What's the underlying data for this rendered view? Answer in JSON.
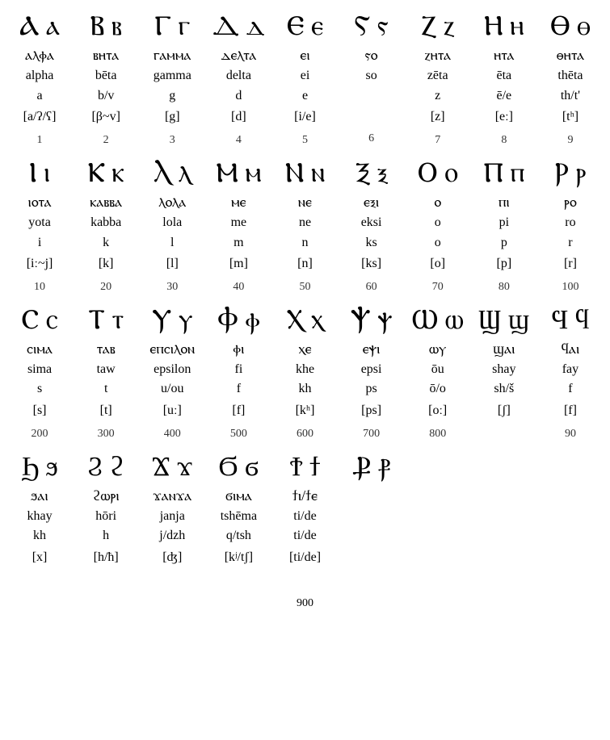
{
  "layout": {
    "columns": 9,
    "rows": 4,
    "background_color": "#ffffff",
    "text_color": "#000000",
    "glyph_fontsize": 34,
    "native_fontsize": 18,
    "label_fontsize": 16,
    "num_fontsize": 14
  },
  "footer": {
    "value": "900"
  },
  "letters": [
    {
      "glyph": "Ⲁ ⲁ",
      "native": "ⲁⲗⲫⲁ",
      "translit": "alpha",
      "sound": "a",
      "ipa": "[a/ʔ/ʕ]",
      "num": "1"
    },
    {
      "glyph": "Ⲃ ⲃ",
      "native": "ⲃⲏⲧⲁ",
      "translit": "bēta",
      "sound": "b/v",
      "ipa": "[β~v]",
      "num": "2"
    },
    {
      "glyph": "Ⲅ ⲅ",
      "native": "ⲅⲁⲙⲙⲁ",
      "translit": "gamma",
      "sound": "g",
      "ipa": "[g]",
      "num": "3"
    },
    {
      "glyph": "Ⲇ ⲇ",
      "native": "ⲇⲉⲗⲧⲁ",
      "translit": "delta",
      "sound": "d",
      "ipa": "[d]",
      "num": "4"
    },
    {
      "glyph": "Ⲉ ⲉ",
      "native": "ⲉⲓ",
      "translit": "ei",
      "sound": "e",
      "ipa": "[i/e]",
      "num": "5"
    },
    {
      "glyph": "Ⲋ ⲋ",
      "native": "ⲋⲟ",
      "translit": "so",
      "sound": "",
      "ipa": "",
      "num": "6"
    },
    {
      "glyph": "Ⲍ ⲍ",
      "native": "ⲍⲏⲧⲁ",
      "translit": "zēta",
      "sound": "z",
      "ipa": "[z]",
      "num": "7"
    },
    {
      "glyph": "Ⲏ ⲏ",
      "native": "ⲏⲧⲁ",
      "translit": "ēta",
      "sound": "ē/e",
      "ipa": "[eː]",
      "num": "8"
    },
    {
      "glyph": "Ⲑ ⲑ",
      "native": "ⲑⲏⲧⲁ",
      "translit": "thēta",
      "sound": "th/t'",
      "ipa": "[tʰ]",
      "num": "9"
    },
    {
      "glyph": "Ⲓ ⲓ",
      "native": "ⲓⲟⲧⲁ",
      "translit": "yota",
      "sound": "i",
      "ipa": "[iː~j]",
      "num": "10"
    },
    {
      "glyph": "Ⲕ ⲕ",
      "native": "ⲕⲁⲃⲃⲁ",
      "translit": "kabba",
      "sound": "k",
      "ipa": "[k]",
      "num": "20"
    },
    {
      "glyph": "Ⲗ ⲗ",
      "native": "ⲗⲟⲗⲁ",
      "translit": "lola",
      "sound": "l",
      "ipa": "[l]",
      "num": "30"
    },
    {
      "glyph": "Ⲙ ⲙ",
      "native": "ⲙⲉ",
      "translit": "me",
      "sound": "m",
      "ipa": "[m]",
      "num": "40"
    },
    {
      "glyph": "Ⲛ ⲛ",
      "native": "ⲛⲉ",
      "translit": "ne",
      "sound": "n",
      "ipa": "[n]",
      "num": "50"
    },
    {
      "glyph": "Ⲝ ⲝ",
      "native": "ⲉⲝⲓ",
      "translit": "eksi",
      "sound": "ks",
      "ipa": "[ks]",
      "num": "60"
    },
    {
      "glyph": "Ⲟ ⲟ",
      "native": "ⲟ",
      "translit": "o",
      "sound": "o",
      "ipa": "[o]",
      "num": "70"
    },
    {
      "glyph": "Ⲡ ⲡ",
      "native": "ⲡⲓ",
      "translit": "pi",
      "sound": "p",
      "ipa": "[p]",
      "num": "80"
    },
    {
      "glyph": "Ⲣ ⲣ",
      "native": "ⲣⲟ",
      "translit": "ro",
      "sound": "r",
      "ipa": "[r]",
      "num": "100"
    },
    {
      "glyph": "Ⲥ ⲥ",
      "native": "ⲥⲓⲙⲁ",
      "translit": "sima",
      "sound": "s",
      "ipa": "[s]",
      "num": "200"
    },
    {
      "glyph": "Ⲧ ⲧ",
      "native": "ⲧⲁⲃ",
      "translit": "taw",
      "sound": "t",
      "ipa": "[t]",
      "num": "300"
    },
    {
      "glyph": "Ⲩ ⲩ",
      "native": "ⲉⲡⲥⲓⲗⲟⲛ",
      "translit": "epsilon",
      "sound": "u/ou",
      "ipa": "[uː]",
      "num": "400"
    },
    {
      "glyph": "Ⲫ ⲫ",
      "native": "ⲫⲓ",
      "translit": "fi",
      "sound": "f",
      "ipa": "[f]",
      "num": "500"
    },
    {
      "glyph": "Ⲭ ⲭ",
      "native": "ⲭⲉ",
      "translit": "khe",
      "sound": "kh",
      "ipa": "[kʰ]",
      "num": "600"
    },
    {
      "glyph": "Ⲯ ⲯ",
      "native": "ⲉⲯⲓ",
      "translit": "epsi",
      "sound": "ps",
      "ipa": "[ps]",
      "num": "700"
    },
    {
      "glyph": "Ⲱ ⲱ",
      "native": "ⲱⲩ",
      "translit": "ōu",
      "sound": "ō/o",
      "ipa": "[oː]",
      "num": "800"
    },
    {
      "glyph": "Ϣ ϣ",
      "native": "ϣⲁⲓ",
      "translit": "shay",
      "sound": "sh/š",
      "ipa": "[ʃ]",
      "num": ""
    },
    {
      "glyph": "Ϥ ϥ",
      "native": "ϥⲁⲓ",
      "translit": "fay",
      "sound": "f",
      "ipa": "[f]",
      "num": "90"
    },
    {
      "glyph": "Ϧ ϧ",
      "native": "ϧⲁⲓ",
      "translit": "khay",
      "sound": "kh",
      "ipa": "[x]",
      "num": ""
    },
    {
      "glyph": "Ϩ ϩ",
      "native": "ϩⲱⲣⲓ",
      "translit": "hōri",
      "sound": "h",
      "ipa": "[h/ħ]",
      "num": ""
    },
    {
      "glyph": "Ϫ ϫ",
      "native": "ϫⲁⲛϫⲁ",
      "translit": "janja",
      "sound": "j/dzh",
      "ipa": "[ʤ]",
      "num": ""
    },
    {
      "glyph": "Ϭ ϭ",
      "native": "ϭⲓⲙⲁ",
      "translit": "tshēma",
      "sound": "q/tsh",
      "ipa": "[kʲ/tʃ]",
      "num": ""
    },
    {
      "glyph": "Ϯ ϯ",
      "native": "ϯⲓ/ϯⲉ",
      "translit": "ti/de",
      "sound": "ti/de",
      "ipa": "[ti/de]",
      "num": ""
    },
    {
      "glyph": "Ⳁ ⳁ",
      "native": "",
      "translit": "",
      "sound": "",
      "ipa": "",
      "num": ""
    }
  ]
}
